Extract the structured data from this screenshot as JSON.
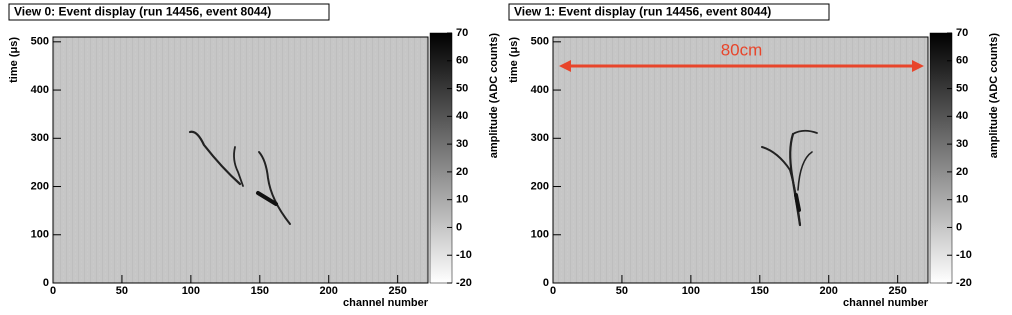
{
  "chart_data": [
    {
      "type": "heatmap",
      "title": "View 0: Event display (run 14456, event 8044)",
      "xlabel": "channel number",
      "ylabel": "time (μs)",
      "xlim": [
        0,
        272
      ],
      "xticks": [
        0,
        50,
        100,
        150,
        200,
        250
      ],
      "ylim": [
        0,
        510
      ],
      "yticks": [
        0,
        100,
        200,
        300,
        400,
        500
      ],
      "colorbar": {
        "label": "amplitude (ADC counts)",
        "lim": [
          -20,
          70
        ],
        "ticks": [
          -20,
          -10,
          0,
          10,
          20,
          30,
          40,
          50,
          60,
          70
        ],
        "colors": [
          "#ffffff",
          "#000000"
        ]
      },
      "background": "#c6c6c6"
    },
    {
      "type": "heatmap",
      "title": "View 1: Event display (run 14456, event 8044)",
      "xlabel": "channel number",
      "ylabel": "time (μs)",
      "xlim": [
        0,
        272
      ],
      "xticks": [
        0,
        50,
        100,
        150,
        200,
        250
      ],
      "ylim": [
        0,
        510
      ],
      "yticks": [
        0,
        100,
        200,
        300,
        400,
        500
      ],
      "colorbar": {
        "label": "amplitude (ADC counts)",
        "lim": [
          -20,
          70
        ],
        "ticks": [
          -20,
          -10,
          0,
          10,
          20,
          30,
          40,
          50,
          60,
          70
        ],
        "colors": [
          "#ffffff",
          "#000000"
        ]
      },
      "background": "#c6c6c6",
      "annotation": "80cm",
      "annotation_color": "#e8452b"
    }
  ]
}
